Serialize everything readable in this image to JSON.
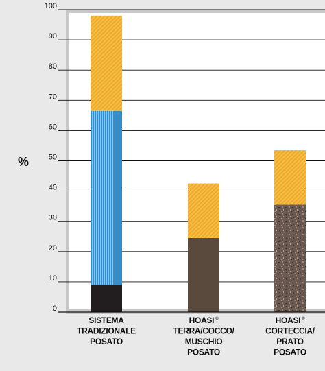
{
  "chart_data": {
    "type": "bar",
    "stacked": true,
    "ylabel": "%",
    "ylim": [
      0,
      100
    ],
    "yticks": [
      "0",
      "10",
      "20",
      "30",
      "40",
      "50",
      "60",
      "70",
      "80",
      "90",
      "100"
    ],
    "grid": true,
    "categories": [
      {
        "lines": [
          "SISTEMA",
          "TRADIZIONALE",
          "POSATO"
        ],
        "sup": ""
      },
      {
        "lines": [
          "HOASI",
          "TERRA/COCCO/",
          "MUSCHIO",
          "POSATO"
        ],
        "sup": "®"
      },
      {
        "lines": [
          "HOASI",
          "CORTECCIA/",
          "PRATO",
          "POSATO"
        ],
        "sup": "®"
      }
    ],
    "bars": [
      [
        {
          "value": 9,
          "color": "#221e1f",
          "pattern": "solid"
        },
        {
          "value": 57.5,
          "color": "#2f8fd0",
          "pattern": "vstripes"
        },
        {
          "value": 31.5,
          "color": "#f4b43a",
          "pattern": "diagonal"
        }
      ],
      [
        {
          "value": 24.5,
          "color": "#5a4a3e",
          "pattern": "solid"
        },
        {
          "value": 18,
          "color": "#f4b43a",
          "pattern": "diagonal"
        }
      ],
      [
        {
          "value": 35.5,
          "color": "#6e5a52",
          "pattern": "speckle"
        },
        {
          "value": 18,
          "color": "#f4b43a",
          "pattern": "diagonal"
        }
      ]
    ],
    "colors": {
      "background": "#e9e9e9",
      "plot_background": "#ffffff",
      "frame": "#c8c8c8",
      "grid": "#111111"
    }
  }
}
